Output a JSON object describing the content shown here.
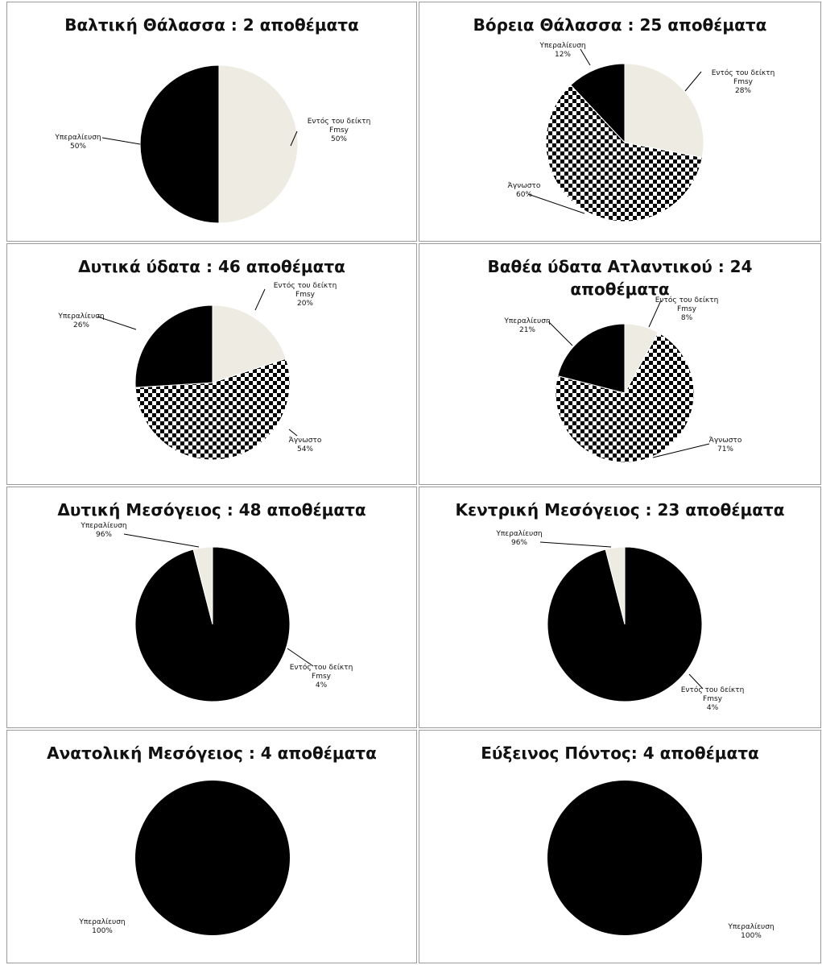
{
  "colors": {
    "within": "#eeece2",
    "over": "#000000",
    "unknown_fg": "#000000",
    "unknown_bg": "#ffffff"
  },
  "chart_data": [
    {
      "type": "pie",
      "title": "Βαλτική Θάλασσα : 2 αποθέματα",
      "slices": [
        {
          "key": "within",
          "label": [
            "Εντός του δείκτη",
            "Fmsy"
          ],
          "pct": "50%",
          "value": 50
        },
        {
          "key": "over",
          "label": [
            "Υπεραλίευση"
          ],
          "pct": "50%",
          "value": 50
        }
      ]
    },
    {
      "type": "pie",
      "title": "Βόρεια Θάλασσα : 25 αποθέματα",
      "slices": [
        {
          "key": "within",
          "label": [
            "Εντός του δείκτη",
            "Fmsy"
          ],
          "pct": "28%",
          "value": 28
        },
        {
          "key": "unknown",
          "label": [
            "Άγνωστο"
          ],
          "pct": "60%",
          "value": 60
        },
        {
          "key": "over",
          "label": [
            "Υπεραλίευση"
          ],
          "pct": "12%",
          "value": 12
        }
      ]
    },
    {
      "type": "pie",
      "title": "Δυτικά ύδατα : 46 αποθέματα",
      "slices": [
        {
          "key": "within",
          "label": [
            "Εντός του δείκτη",
            "Fmsy"
          ],
          "pct": "20%",
          "value": 20
        },
        {
          "key": "unknown",
          "label": [
            "Άγνωστο"
          ],
          "pct": "54%",
          "value": 54
        },
        {
          "key": "over",
          "label": [
            "Υπεραλίευση"
          ],
          "pct": "26%",
          "value": 26
        }
      ]
    },
    {
      "type": "pie",
      "title": "Βαθέα ύδατα Ατλαντικού : 24 αποθέματα",
      "slices": [
        {
          "key": "within",
          "label": [
            "Εντός του δείκτη",
            "Fmsy"
          ],
          "pct": "8%",
          "value": 8
        },
        {
          "key": "unknown",
          "label": [
            "Άγνωστο"
          ],
          "pct": "71%",
          "value": 71
        },
        {
          "key": "over",
          "label": [
            "Υπεραλίευση"
          ],
          "pct": "21%",
          "value": 21
        }
      ]
    },
    {
      "type": "pie",
      "title": "Δυτική Μεσόγειος : 48 αποθέματα",
      "slices": [
        {
          "key": "over",
          "label": [
            "Υπεραλίευση"
          ],
          "pct": "96%",
          "value": 96
        },
        {
          "key": "within",
          "label": [
            "Εντός του δείκτη",
            "Fmsy"
          ],
          "pct": "4%",
          "value": 4
        }
      ]
    },
    {
      "type": "pie",
      "title": "Κεντρική Μεσόγειος : 23 αποθέματα",
      "slices": [
        {
          "key": "over",
          "label": [
            "Υπεραλίευση"
          ],
          "pct": "96%",
          "value": 96
        },
        {
          "key": "within",
          "label": [
            "Εντός του δείκτη",
            "Fmsy"
          ],
          "pct": "4%",
          "value": 4
        }
      ]
    },
    {
      "type": "pie",
      "title": "Ανατολική Μεσόγειος : 4 αποθέματα",
      "slices": [
        {
          "key": "over",
          "label": [
            "Υπεραλίευση"
          ],
          "pct": "100%",
          "value": 100
        }
      ]
    },
    {
      "type": "pie",
      "title": "Εύξεινος Πόντος: 4 αποθέματα",
      "slices": [
        {
          "key": "over",
          "label": [
            "Υπεραλίευση"
          ],
          "pct": "100%",
          "value": 100
        }
      ]
    }
  ]
}
